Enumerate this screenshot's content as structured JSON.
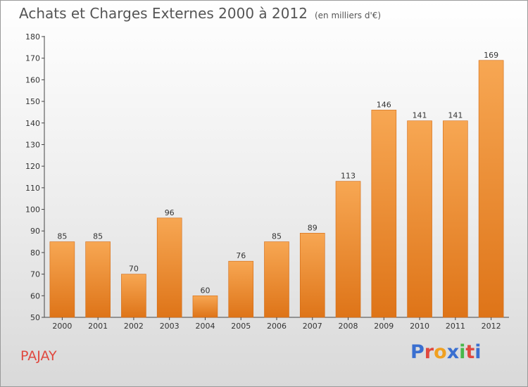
{
  "page": {
    "title": "Achats et Charges Externes 2000 à 2012",
    "subtitle": "(en milliers d'€)",
    "commune": "PAJAY",
    "logo_text": "Proxiti",
    "logo_colors": [
      "#3a6fd0",
      "#e0483e",
      "#f0a020",
      "#3a6fd0",
      "#48b84a",
      "#e0483e",
      "#3a6fd0"
    ]
  },
  "chart_data": {
    "type": "bar",
    "title": "Achats et Charges Externes 2000 à 2012",
    "subtitle": "(en milliers d'€)",
    "categories": [
      "2000",
      "2001",
      "2002",
      "2003",
      "2004",
      "2005",
      "2006",
      "2007",
      "2008",
      "2009",
      "2010",
      "2011",
      "2012"
    ],
    "values": [
      85,
      85,
      70,
      96,
      60,
      76,
      85,
      89,
      113,
      146,
      141,
      141,
      169
    ],
    "ylim": [
      50,
      180
    ],
    "yticks": [
      50,
      60,
      70,
      80,
      90,
      100,
      110,
      120,
      130,
      140,
      150,
      160,
      170,
      180
    ],
    "grid": false,
    "bar_color": "#f0892c"
  }
}
